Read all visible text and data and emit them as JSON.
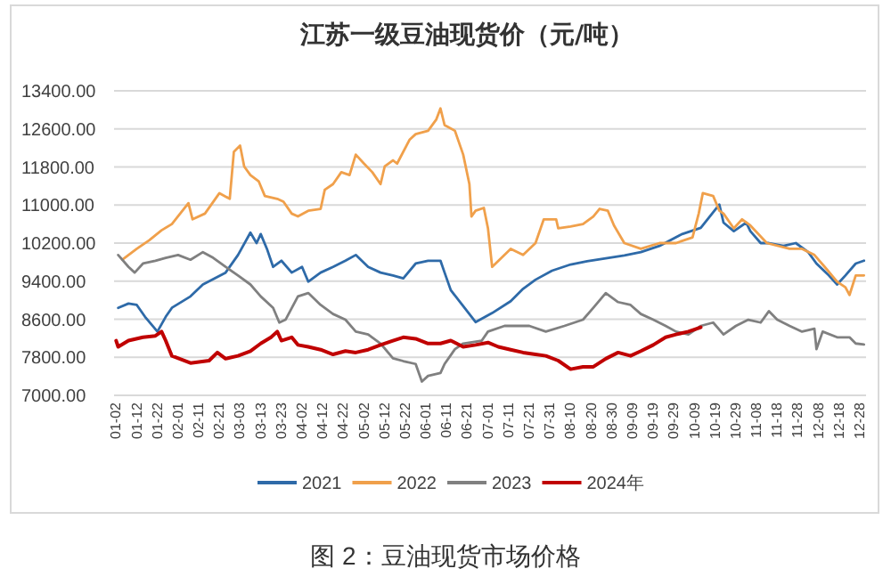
{
  "chart_data": {
    "type": "line",
    "title": "江苏一级豆油现货价（元/吨）",
    "annotations": [
      "图 2：豆油现货市场价格"
    ],
    "xlim": [
      "--01-01",
      "--12-31"
    ],
    "xticks": [
      {
        "value": "--01-02",
        "label": "01-02"
      },
      {
        "value": "--01-12",
        "label": "01-12"
      },
      {
        "value": "--01-22",
        "label": "01-22"
      },
      {
        "value": "--02-01",
        "label": "02-01"
      },
      {
        "value": "--02-11",
        "label": "02-11"
      },
      {
        "value": "--02-21",
        "label": "02-21"
      },
      {
        "value": "--03-03",
        "label": "03-03"
      },
      {
        "value": "--03-13",
        "label": "03-13"
      },
      {
        "value": "--03-23",
        "label": "03-23"
      },
      {
        "value": "--04-02",
        "label": "04-02"
      },
      {
        "value": "--04-12",
        "label": "04-12"
      },
      {
        "value": "--04-22",
        "label": "04-22"
      },
      {
        "value": "--05-02",
        "label": "05-02"
      },
      {
        "value": "--05-12",
        "label": "05-12"
      },
      {
        "value": "--05-22",
        "label": "05-22"
      },
      {
        "value": "--06-01",
        "label": "06-01"
      },
      {
        "value": "--06-11",
        "label": "06-11"
      },
      {
        "value": "--06-21",
        "label": "06-21"
      },
      {
        "value": "--07-01",
        "label": "07-01"
      },
      {
        "value": "--07-11",
        "label": "07-11"
      },
      {
        "value": "--07-21",
        "label": "07-21"
      },
      {
        "value": "--07-31",
        "label": "07-31"
      },
      {
        "value": "--08-10",
        "label": "08-10"
      },
      {
        "value": "--08-20",
        "label": "08-20"
      },
      {
        "value": "--08-30",
        "label": "08-30"
      },
      {
        "value": "--09-09",
        "label": "09-09"
      },
      {
        "value": "--09-19",
        "label": "09-19"
      },
      {
        "value": "--09-29",
        "label": "09-29"
      },
      {
        "value": "--10-09",
        "label": "10-09"
      },
      {
        "value": "--10-19",
        "label": "10-19"
      },
      {
        "value": "--10-29",
        "label": "10-29"
      },
      {
        "value": "--11-08",
        "label": "11-08"
      },
      {
        "value": "--11-18",
        "label": "11-18"
      },
      {
        "value": "--11-28",
        "label": "11-28"
      },
      {
        "value": "--12-08",
        "label": "12-08"
      },
      {
        "value": "--12-18",
        "label": "12-18"
      },
      {
        "value": "--12-28",
        "label": "12-28"
      }
    ],
    "ylim": [
      7000,
      13400
    ],
    "yticks": [
      {
        "value": 7000,
        "label": "7000.00"
      },
      {
        "value": 7800,
        "label": "7800.00"
      },
      {
        "value": 8600,
        "label": "8600.00"
      },
      {
        "value": 9400,
        "label": "9400.00"
      },
      {
        "value": 10200,
        "label": "10200.00"
      },
      {
        "value": 11000,
        "label": "11000.00"
      },
      {
        "value": 11800,
        "label": "11800.00"
      },
      {
        "value": 12600,
        "label": "12600.00"
      },
      {
        "value": 13400,
        "label": "13400.00"
      }
    ],
    "grid": "y",
    "legend": "bottom",
    "series": [
      {
        "name": "2021",
        "color": "#2e6aa8",
        "x": [
          "--01-03",
          "--01-08",
          "--01-12",
          "--01-16",
          "--01-22",
          "--01-26",
          "--01-29",
          "--02-07",
          "--02-13",
          "--02-24",
          "--03-02",
          "--03-08",
          "--03-11",
          "--03-13",
          "--03-16",
          "--03-19",
          "--03-23",
          "--03-28",
          "--04-02",
          "--04-05",
          "--04-11",
          "--04-17",
          "--04-23",
          "--04-28",
          "--05-04",
          "--05-10",
          "--05-16",
          "--05-21",
          "--05-27",
          "--06-02",
          "--06-08",
          "--06-10",
          "--06-13",
          "--06-25",
          "--07-03",
          "--07-12",
          "--07-18",
          "--07-24",
          "--08-01",
          "--08-10",
          "--08-18",
          "--08-27",
          "--09-05",
          "--09-13",
          "--09-22",
          "--10-03",
          "--10-12",
          "--10-21",
          "--10-23",
          "--10-28",
          "--11-03",
          "--11-05",
          "--11-10",
          "--11-14",
          "--11-21",
          "--11-27",
          "--12-03",
          "--12-07",
          "--12-13",
          "--12-17",
          "--12-21",
          "--12-26",
          "--12-30"
        ],
        "values": [
          8840,
          8930,
          8900,
          8650,
          8340,
          8650,
          8840,
          9080,
          9330,
          9580,
          9950,
          10420,
          10200,
          10390,
          10080,
          9700,
          9830,
          9580,
          9700,
          9390,
          9580,
          9700,
          9830,
          9950,
          9700,
          9580,
          9520,
          9460,
          9770,
          9830,
          9830,
          9580,
          9210,
          8540,
          8730,
          8980,
          9240,
          9430,
          9620,
          9750,
          9820,
          9880,
          9940,
          10010,
          10140,
          10390,
          10520,
          11010,
          10630,
          10450,
          10630,
          10450,
          10200,
          10200,
          10140,
          10200,
          10010,
          9770,
          9520,
          9330,
          9520,
          9770,
          9830
        ]
      },
      {
        "name": "2022",
        "color": "#f0a04b",
        "x": [
          "--01-05",
          "--01-12",
          "--01-18",
          "--01-24",
          "--01-29",
          "--02-06",
          "--02-08",
          "--02-14",
          "--02-21",
          "--02-26",
          "--02-28",
          "--03-03",
          "--03-05",
          "--03-08",
          "--03-12",
          "--03-15",
          "--03-21",
          "--03-24",
          "--03-28",
          "--03-31",
          "--04-05",
          "--04-11",
          "--04-13",
          "--04-17",
          "--04-21",
          "--04-25",
          "--04-28",
          "--05-02",
          "--05-06",
          "--05-10",
          "--05-12",
          "--05-16",
          "--05-18",
          "--05-24",
          "--05-27",
          "--06-02",
          "--06-06",
          "--06-08",
          "--06-10",
          "--06-15",
          "--06-19",
          "--06-22",
          "--06-23",
          "--06-25",
          "--06-29",
          "--07-01",
          "--07-03",
          "--07-12",
          "--07-18",
          "--07-24",
          "--07-28",
          "--08-03",
          "--08-04",
          "--08-10",
          "--08-16",
          "--08-21",
          "--08-24",
          "--08-28",
          "--08-31",
          "--09-05",
          "--09-13",
          "--09-22",
          "--09-30",
          "--10-08",
          "--10-11",
          "--10-13",
          "--10-18",
          "--10-21",
          "--10-23",
          "--10-28",
          "--11-01",
          "--11-05",
          "--11-13",
          "--11-24",
          "--11-30",
          "--12-06",
          "--12-11",
          "--12-17",
          "--12-21",
          "--12-23",
          "--12-26",
          "--12-30"
        ],
        "values": [
          9850,
          10080,
          10260,
          10470,
          10600,
          11040,
          10700,
          10820,
          11250,
          11130,
          12120,
          12250,
          11810,
          11630,
          11500,
          11190,
          11130,
          11070,
          10820,
          10760,
          10880,
          10920,
          11320,
          11440,
          11690,
          11630,
          12060,
          11870,
          11690,
          11440,
          11810,
          11940,
          11870,
          12370,
          12490,
          12560,
          12800,
          13030,
          12680,
          12560,
          12060,
          11440,
          10760,
          10880,
          10940,
          10510,
          9700,
          10080,
          9950,
          10200,
          10700,
          10700,
          10510,
          10550,
          10600,
          10760,
          10920,
          10880,
          10570,
          10200,
          10080,
          10200,
          10200,
          10320,
          10820,
          11250,
          11190,
          10880,
          10820,
          10510,
          10700,
          10570,
          10200,
          10080,
          10080,
          9950,
          9700,
          9390,
          9270,
          9110,
          9520,
          9520
        ]
      },
      {
        "name": "2023",
        "color": "#808080",
        "x": [
          "--01-03",
          "--01-08",
          "--01-11",
          "--01-15",
          "--01-21",
          "--01-26",
          "--02-01",
          "--02-07",
          "--02-13",
          "--02-18",
          "--02-24",
          "--03-02",
          "--03-08",
          "--03-13",
          "--03-19",
          "--03-22",
          "--03-25",
          "--03-31",
          "--04-05",
          "--04-11",
          "--04-17",
          "--04-23",
          "--04-28",
          "--05-04",
          "--05-10",
          "--05-16",
          "--05-21",
          "--05-27",
          "--05-30",
          "--06-02",
          "--06-08",
          "--06-10",
          "--06-15",
          "--06-19",
          "--06-28",
          "--07-01",
          "--07-09",
          "--07-21",
          "--07-29",
          "--08-07",
          "--08-16",
          "--08-21",
          "--08-27",
          "--09-02",
          "--09-08",
          "--09-13",
          "--09-19",
          "--09-25",
          "--09-30",
          "--10-06",
          "--10-12",
          "--10-18",
          "--10-23",
          "--10-29",
          "--11-04",
          "--11-10",
          "--11-14",
          "--11-18",
          "--11-24",
          "--11-30",
          "--12-06",
          "--12-07",
          "--12-10",
          "--12-17",
          "--12-23",
          "--12-26",
          "--12-30"
        ],
        "values": [
          9950,
          9700,
          9580,
          9770,
          9830,
          9890,
          9950,
          9850,
          10010,
          9890,
          9700,
          9520,
          9330,
          9080,
          8840,
          8530,
          8590,
          9080,
          9150,
          8900,
          8710,
          8590,
          8340,
          8280,
          8090,
          7780,
          7720,
          7660,
          7290,
          7410,
          7470,
          7660,
          7970,
          8090,
          8150,
          8340,
          8460,
          8460,
          8340,
          8460,
          8590,
          8840,
          9150,
          8960,
          8900,
          8710,
          8590,
          8460,
          8340,
          8280,
          8460,
          8530,
          8280,
          8460,
          8590,
          8530,
          8770,
          8590,
          8460,
          8340,
          8400,
          7970,
          8340,
          8220,
          8220,
          8090,
          8070
        ]
      },
      {
        "name": "2024年",
        "color": "#c00000",
        "x": [
          "--01-02",
          "--01-03",
          "--01-08",
          "--01-15",
          "--01-21",
          "--01-24",
          "--01-26",
          "--01-29",
          "--02-07",
          "--02-16",
          "--02-20",
          "--02-24",
          "--03-02",
          "--03-08",
          "--03-13",
          "--03-18",
          "--03-21",
          "--03-23",
          "--03-28",
          "--03-31",
          "--04-05",
          "--04-11",
          "--04-17",
          "--04-23",
          "--04-28",
          "--05-04",
          "--05-10",
          "--05-16",
          "--05-21",
          "--05-27",
          "--06-02",
          "--06-08",
          "--06-13",
          "--06-19",
          "--06-25",
          "--07-01",
          "--07-06",
          "--07-12",
          "--07-18",
          "--07-24",
          "--07-29",
          "--08-04",
          "--08-10",
          "--08-16",
          "--08-21",
          "--08-27",
          "--09-02",
          "--09-08",
          "--09-13",
          "--09-19",
          "--09-25",
          "--09-30",
          "--10-06",
          "--10-12"
        ],
        "values": [
          8150,
          8020,
          8150,
          8220,
          8250,
          8340,
          8150,
          7830,
          7680,
          7730,
          7900,
          7770,
          7830,
          7930,
          8090,
          8220,
          8340,
          8150,
          8220,
          8060,
          8020,
          7960,
          7860,
          7930,
          7900,
          7960,
          8060,
          8150,
          8220,
          8190,
          8090,
          8090,
          8150,
          8020,
          8060,
          8110,
          8020,
          7960,
          7900,
          7860,
          7830,
          7730,
          7550,
          7600,
          7600,
          7770,
          7900,
          7830,
          7930,
          8060,
          8220,
          8280,
          8340,
          8430
        ]
      }
    ]
  }
}
